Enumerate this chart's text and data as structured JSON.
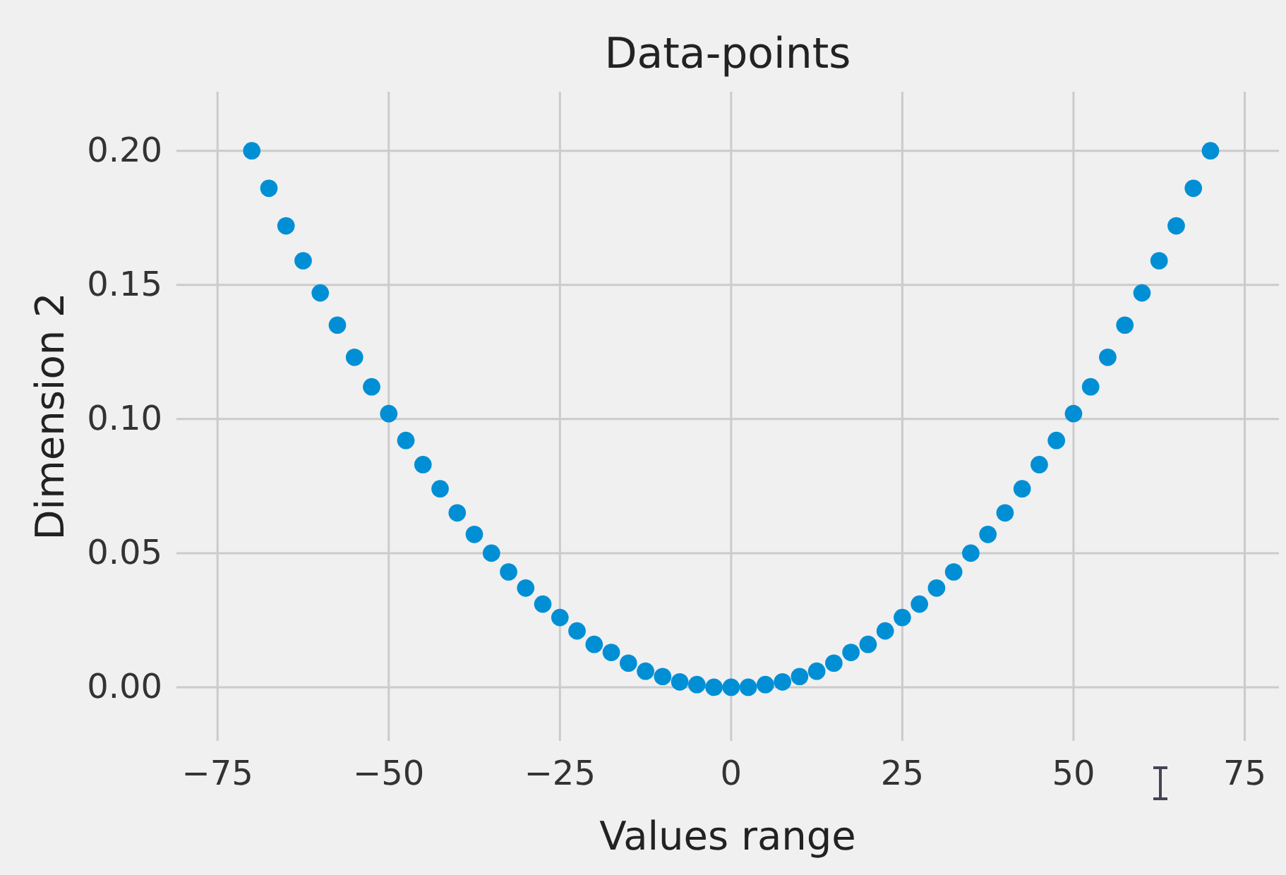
{
  "chart_data": {
    "type": "scatter",
    "title": "Data-points",
    "xlabel": "Values range",
    "ylabel": "Dimension 2",
    "x": [
      -70,
      -67.5,
      -65,
      -62.5,
      -60,
      -57.5,
      -55,
      -52.5,
      -50,
      -47.5,
      -45,
      -42.5,
      -40,
      -37.5,
      -35,
      -32.5,
      -30,
      -27.5,
      -25,
      -22.5,
      -20,
      -17.5,
      -15,
      -12.5,
      -10,
      -7.5,
      -5,
      -2.5,
      0,
      2.5,
      5,
      7.5,
      10,
      12.5,
      15,
      17.5,
      20,
      22.5,
      25,
      27.5,
      30,
      32.5,
      35,
      37.5,
      40,
      42.5,
      45,
      47.5,
      50,
      52.5,
      55,
      57.5,
      60,
      62.5,
      65,
      67.5,
      70
    ],
    "series": [
      {
        "color": "#008fd5",
        "values": [
          0.2,
          0.186,
          0.172,
          0.159,
          0.147,
          0.135,
          0.123,
          0.112,
          0.102,
          0.092,
          0.083,
          0.074,
          0.065,
          0.057,
          0.05,
          0.043,
          0.037,
          0.031,
          0.026,
          0.021,
          0.016,
          0.013,
          0.009,
          0.006,
          0.004,
          0.002,
          0.001,
          0,
          0,
          0,
          0.001,
          0.002,
          0.004,
          0.006,
          0.009,
          0.013,
          0.016,
          0.021,
          0.026,
          0.031,
          0.037,
          0.043,
          0.05,
          0.057,
          0.065,
          0.074,
          0.083,
          0.092,
          0.102,
          0.112,
          0.123,
          0.135,
          0.147,
          0.159,
          0.172,
          0.186,
          0.2
        ]
      }
    ],
    "xlim": [
      -81,
      80
    ],
    "ylim": [
      -0.02,
      0.222
    ],
    "xticks": [
      {
        "value": -75,
        "label": "−75"
      },
      {
        "value": -50,
        "label": "−50"
      },
      {
        "value": -25,
        "label": "−25"
      },
      0,
      25,
      50,
      75
    ],
    "yticks": [
      {
        "value": 0,
        "label": "0.00"
      },
      {
        "value": 0.05,
        "label": "0.05"
      },
      {
        "value": 0.1,
        "label": "0.10"
      },
      {
        "value": 0.15,
        "label": "0.15"
      },
      {
        "value": 0.2,
        "label": "0.20"
      }
    ],
    "grid": true,
    "marker": "circle"
  }
}
